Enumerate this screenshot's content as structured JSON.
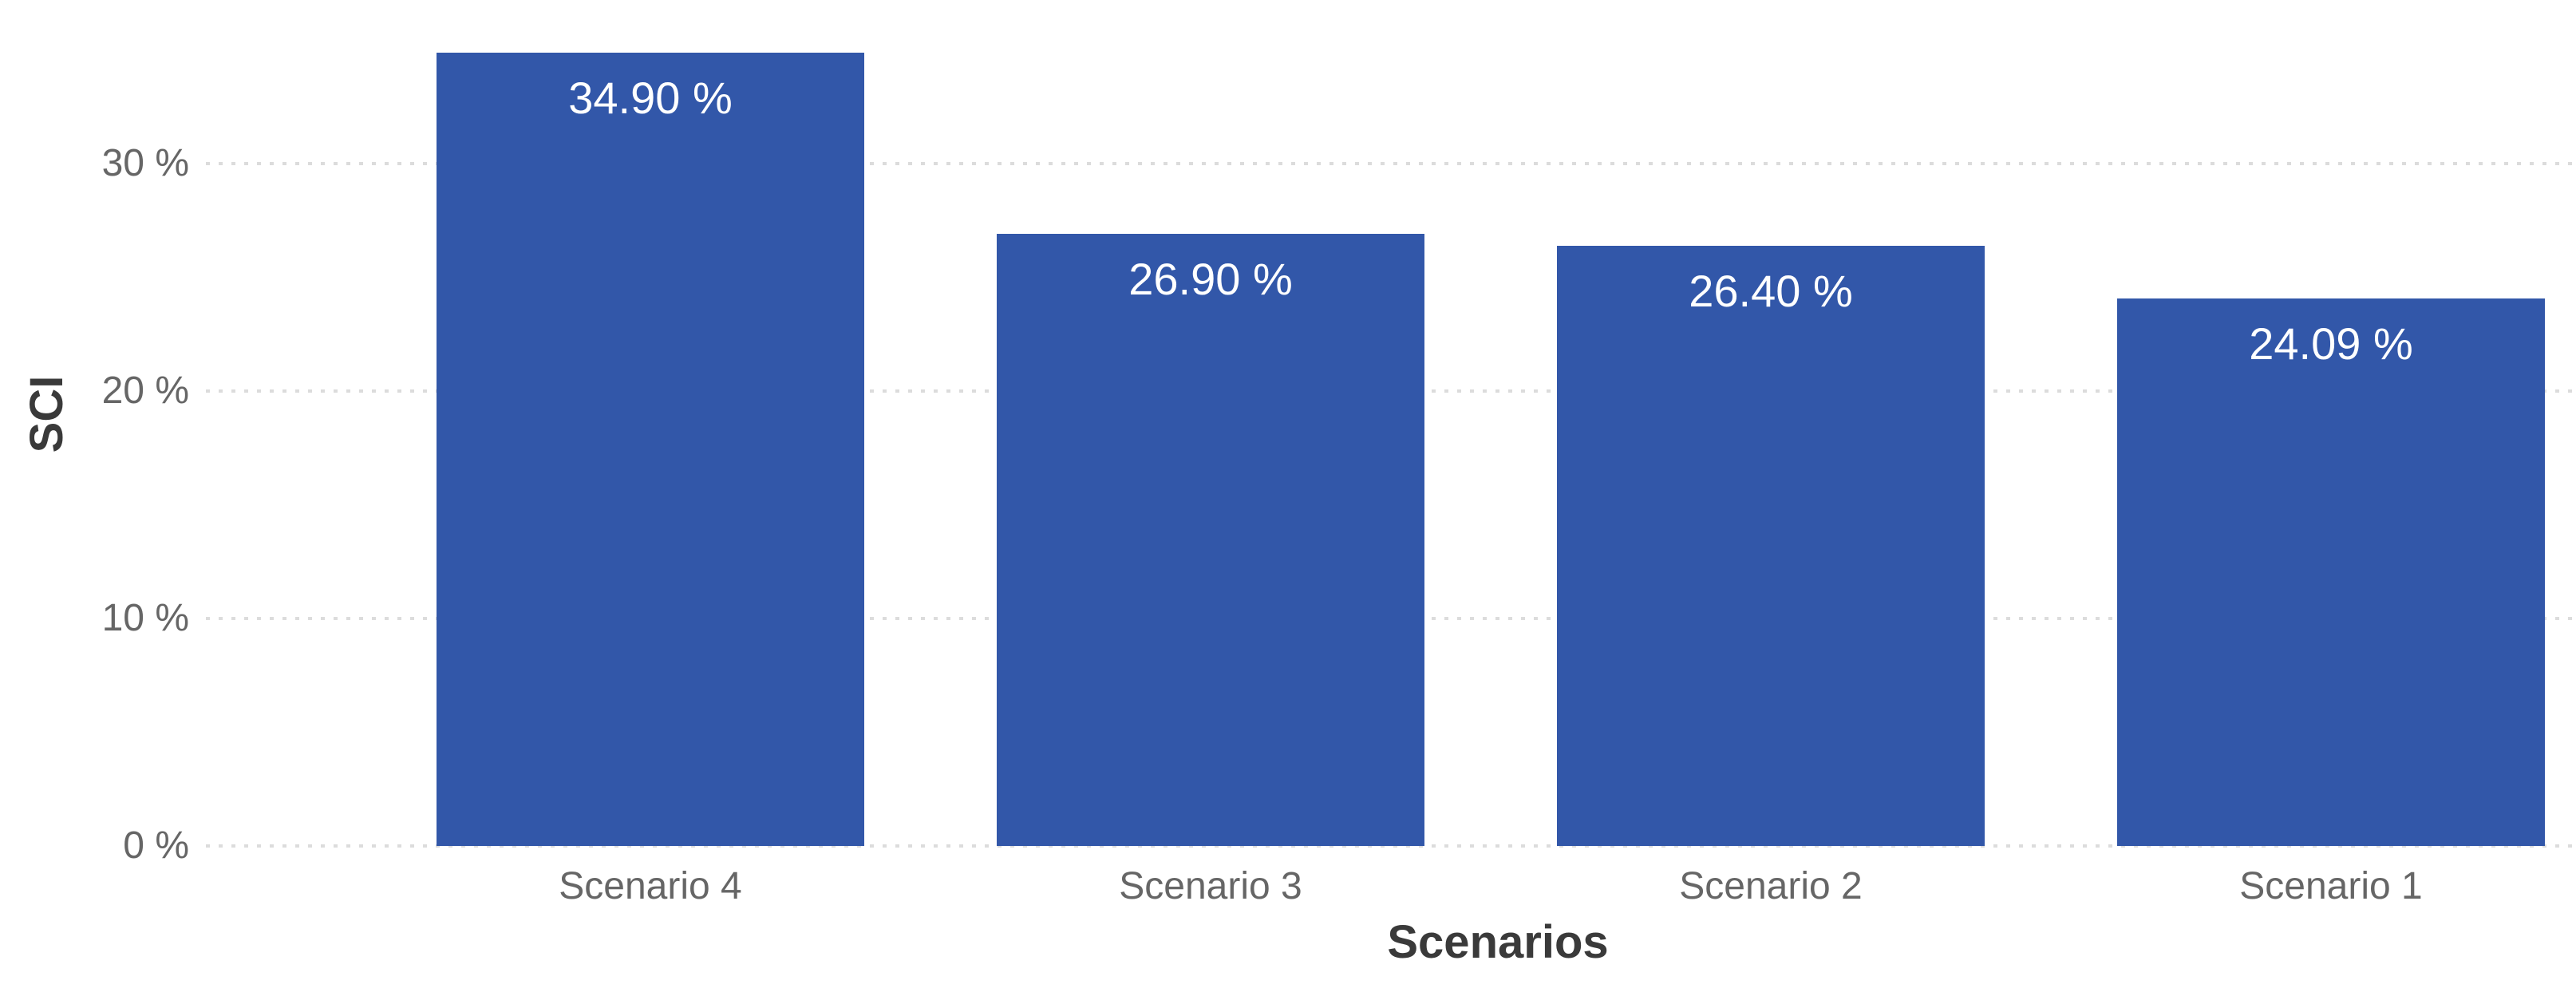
{
  "chart_data": {
    "type": "bar",
    "title": "",
    "xlabel": "Scenarios",
    "ylabel": "SCI",
    "categories": [
      "Scenario 4",
      "Scenario 3",
      "Scenario 2",
      "Scenario 1"
    ],
    "values": [
      34.9,
      26.9,
      26.4,
      24.09
    ],
    "data_labels": [
      "34.90 %",
      "26.90 %",
      "26.40 %",
      "24.09 %"
    ],
    "yticks": [
      {
        "value": 0,
        "label": "0 %"
      },
      {
        "value": 10,
        "label": "10 %"
      },
      {
        "value": 20,
        "label": "20 %"
      },
      {
        "value": 30,
        "label": "30 %"
      }
    ],
    "ylim": [
      0,
      37.2
    ],
    "grid": "horizontal-dotted",
    "legend": "none",
    "colors": {
      "bar": "#3257A9",
      "data_label": "#FFFFFF",
      "tick_label": "#666666",
      "category_label": "#666666",
      "axis_title": "#3A3A3A",
      "gridline": "#DCDCDC",
      "background": "#FFFFFF"
    }
  }
}
